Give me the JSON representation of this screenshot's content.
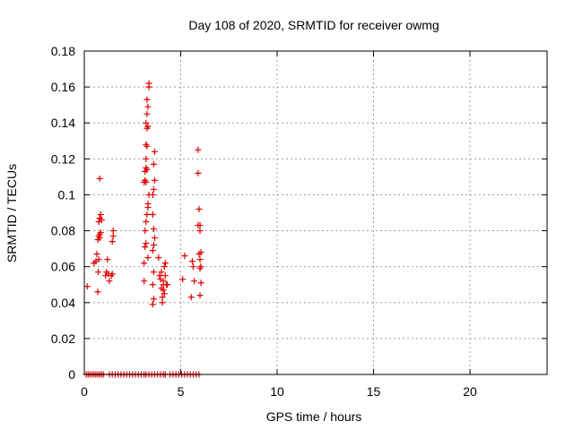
{
  "chart_data": {
    "type": "scatter",
    "title": "Day 108 of 2020, SRMTID for receiver owmg",
    "xlabel": "GPS time / hours",
    "ylabel": "SRMTID / TECUs",
    "xlim": [
      0,
      24
    ],
    "ylim": [
      0,
      0.18
    ],
    "xticks": [
      0,
      5,
      10,
      15,
      20
    ],
    "xtick_labels": [
      "0",
      "5",
      "10",
      "15",
      "20"
    ],
    "yticks": [
      0,
      0.02,
      0.04,
      0.06,
      0.08,
      0.1,
      0.12,
      0.14,
      0.16,
      0.18
    ],
    "ytick_labels": [
      "0",
      "0.02",
      "0.04",
      "0.06",
      "0.08",
      "0.1",
      "0.12",
      "0.14",
      "0.16",
      "0.18"
    ],
    "grid": true,
    "marker": "plus",
    "color": "#e00000",
    "series": [
      {
        "points": [
          [
            0.15,
            0.049
          ],
          [
            0.5,
            0.062
          ],
          [
            0.6,
            0.063
          ],
          [
            0.65,
            0.067
          ],
          [
            0.7,
            0.046
          ],
          [
            0.72,
            0.057
          ],
          [
            0.75,
            0.064
          ],
          [
            0.7,
            0.075
          ],
          [
            0.75,
            0.077
          ],
          [
            0.8,
            0.078
          ],
          [
            0.85,
            0.079
          ],
          [
            0.8,
            0.076
          ],
          [
            0.75,
            0.085
          ],
          [
            0.8,
            0.087
          ],
          [
            0.85,
            0.089
          ],
          [
            0.9,
            0.086
          ],
          [
            0.8,
            0.109
          ],
          [
            1.1,
            0.055
          ],
          [
            1.15,
            0.057
          ],
          [
            1.2,
            0.064
          ],
          [
            1.25,
            0.056
          ],
          [
            1.3,
            0.052
          ],
          [
            1.4,
            0.055
          ],
          [
            1.45,
            0.074
          ],
          [
            1.5,
            0.077
          ],
          [
            1.5,
            0.08
          ],
          [
            1.45,
            0.056
          ],
          [
            3.1,
            0.052
          ],
          [
            3.1,
            0.062
          ],
          [
            3.15,
            0.071
          ],
          [
            3.2,
            0.073
          ],
          [
            3.15,
            0.08
          ],
          [
            3.2,
            0.085
          ],
          [
            3.25,
            0.089
          ],
          [
            3.3,
            0.093
          ],
          [
            3.3,
            0.095
          ],
          [
            3.35,
            0.1
          ],
          [
            3.1,
            0.107
          ],
          [
            3.15,
            0.108
          ],
          [
            3.2,
            0.107
          ],
          [
            3.15,
            0.113
          ],
          [
            3.2,
            0.115
          ],
          [
            3.25,
            0.114
          ],
          [
            3.2,
            0.12
          ],
          [
            3.25,
            0.127
          ],
          [
            3.2,
            0.128
          ],
          [
            3.25,
            0.137
          ],
          [
            3.3,
            0.138
          ],
          [
            3.2,
            0.14
          ],
          [
            3.25,
            0.145
          ],
          [
            3.3,
            0.149
          ],
          [
            3.25,
            0.153
          ],
          [
            3.35,
            0.16
          ],
          [
            3.35,
            0.162
          ],
          [
            3.3,
            0.065
          ],
          [
            3.55,
            0.039
          ],
          [
            3.6,
            0.042
          ],
          [
            3.55,
            0.05
          ],
          [
            3.6,
            0.057
          ],
          [
            3.6,
            0.072
          ],
          [
            3.65,
            0.076
          ],
          [
            3.6,
            0.081
          ],
          [
            3.55,
            0.089
          ],
          [
            3.55,
            0.1
          ],
          [
            3.6,
            0.103
          ],
          [
            3.65,
            0.108
          ],
          [
            3.6,
            0.117
          ],
          [
            3.65,
            0.124
          ],
          [
            3.55,
            0.069
          ],
          [
            3.85,
            0.065
          ],
          [
            3.9,
            0.055
          ],
          [
            3.95,
            0.053
          ],
          [
            4.0,
            0.057
          ],
          [
            4.0,
            0.048
          ],
          [
            4.05,
            0.043
          ],
          [
            4.05,
            0.04
          ],
          [
            4.1,
            0.05
          ],
          [
            4.1,
            0.052
          ],
          [
            4.15,
            0.045
          ],
          [
            4.2,
            0.062
          ],
          [
            4.15,
            0.06
          ],
          [
            4.2,
            0.055
          ],
          [
            4.25,
            0.05
          ],
          [
            4.3,
            0.05
          ],
          [
            4.1,
            0.047
          ],
          [
            5.1,
            0.053
          ],
          [
            5.2,
            0.066
          ],
          [
            5.55,
            0.043
          ],
          [
            5.6,
            0.063
          ],
          [
            5.65,
            0.06
          ],
          [
            5.7,
            0.052
          ],
          [
            5.9,
            0.125
          ],
          [
            5.9,
            0.112
          ],
          [
            5.95,
            0.092
          ],
          [
            5.9,
            0.083
          ],
          [
            6.0,
            0.08
          ],
          [
            6.0,
            0.083
          ],
          [
            5.95,
            0.067
          ],
          [
            6.0,
            0.064
          ],
          [
            6.05,
            0.06
          ],
          [
            6.0,
            0.059
          ],
          [
            6.05,
            0.051
          ],
          [
            6.0,
            0.044
          ],
          [
            6.05,
            0.068
          ]
        ],
        "zeros": [
          0.1,
          0.2,
          0.3,
          0.4,
          0.5,
          0.6,
          0.7,
          0.8,
          0.9,
          1.0,
          1.3,
          1.45,
          1.6,
          1.75,
          1.9,
          2.05,
          2.2,
          2.35,
          2.5,
          2.65,
          2.8,
          2.95,
          3.1,
          3.2,
          3.35,
          3.5,
          3.65,
          3.8,
          3.95,
          4.1,
          4.2,
          4.45,
          4.6,
          4.75,
          4.9,
          5.05,
          5.2,
          5.35,
          5.5,
          5.65,
          5.8,
          5.95
        ]
      }
    ]
  }
}
